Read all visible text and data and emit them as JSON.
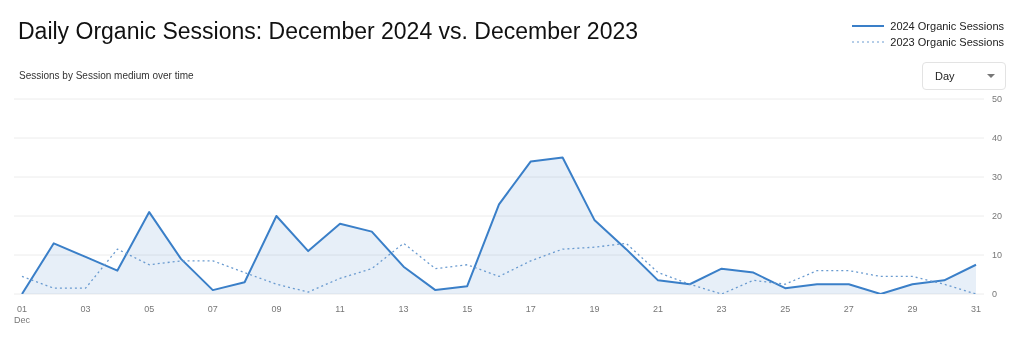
{
  "chart_data": {
    "type": "line",
    "title": "Daily Organic Sessions: December 2024 vs. December 2023",
    "subtitle": "Sessions by Session medium over time",
    "annotations": [
      "Day"
    ],
    "categories": [
      "01 Dec",
      null,
      "03",
      null,
      "05",
      null,
      "07",
      null,
      "09",
      null,
      "11",
      null,
      "13",
      null,
      "15",
      null,
      "17",
      null,
      "19",
      null,
      "21",
      null,
      "23",
      null,
      "25",
      null,
      "27",
      null,
      "29",
      null,
      "31"
    ],
    "series": [
      {
        "name": "2024 Organic Sessions",
        "type": "area",
        "color": "#3a7fc8",
        "line_style": "solid",
        "values": [
          0,
          13,
          9.5,
          6,
          21,
          9,
          1,
          3,
          20,
          11,
          18,
          16,
          7,
          1,
          2,
          23,
          34,
          35,
          19,
          11.5,
          3.5,
          2.5,
          6.5,
          5.5,
          1.5,
          2.5,
          2.5,
          0,
          2.5,
          3.5,
          7.5
        ]
      },
      {
        "name": "2023 Organic Sessions",
        "color": "#6a9bd0",
        "line_style": "dotted",
        "values": [
          4.5,
          1.5,
          1.5,
          11.5,
          7.5,
          8.5,
          8.5,
          5.5,
          2.5,
          0.5,
          4,
          6.5,
          13,
          6.5,
          7.5,
          4.5,
          8.5,
          11.5,
          12,
          13,
          5.5,
          2.5,
          0,
          3.5,
          2.5,
          6,
          6,
          4.5,
          4.5,
          2.5,
          0
        ]
      }
    ],
    "ylim": [
      0,
      50
    ],
    "yticks": [
      0,
      10,
      20,
      30,
      40,
      50
    ],
    "grid": "y",
    "legend": "top right",
    "marker": "none"
  }
}
